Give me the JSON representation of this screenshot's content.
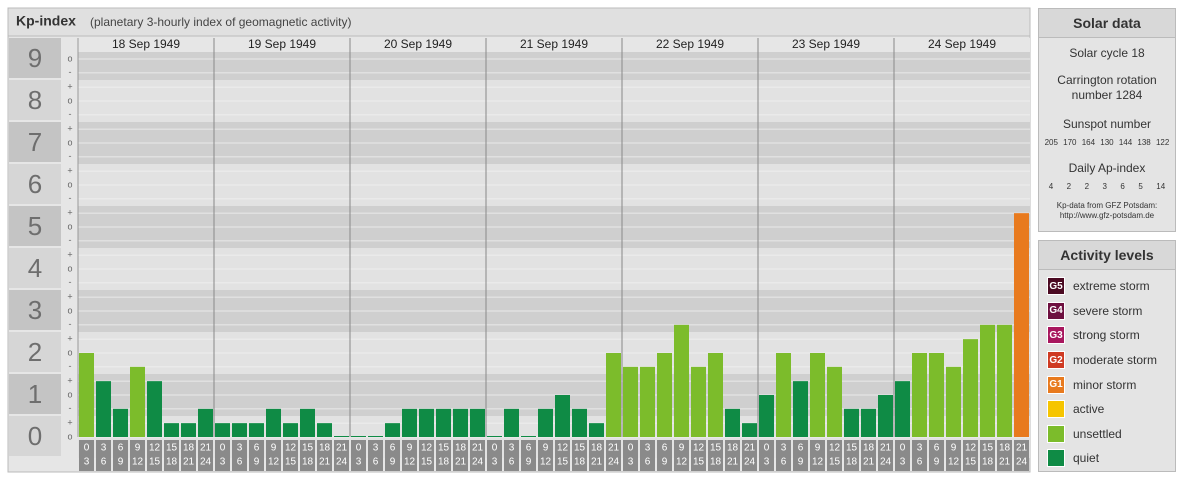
{
  "chart_data": {
    "type": "bar",
    "title": "Kp-index",
    "subtitle": "(planetary 3-hourly index of geomagnetic activity)",
    "ylim": [
      -0.5,
      9.5
    ],
    "yticks": [
      0,
      1,
      2,
      3,
      4,
      5,
      6,
      7,
      8,
      9
    ],
    "yminorticks": [
      {
        "value": 0,
        "label": "o"
      },
      {
        "value": 0.33,
        "label": "+"
      },
      {
        "value": 0.67,
        "label": "-"
      },
      {
        "value": 1,
        "label": "o"
      },
      {
        "value": 1.33,
        "label": "+"
      },
      {
        "value": 1.67,
        "label": "-"
      },
      {
        "value": 2,
        "label": "o"
      },
      {
        "value": 2.33,
        "label": "+"
      },
      {
        "value": 2.67,
        "label": "-"
      },
      {
        "value": 3,
        "label": "o"
      },
      {
        "value": 3.33,
        "label": "+"
      },
      {
        "value": 3.67,
        "label": "-"
      },
      {
        "value": 4,
        "label": "o"
      },
      {
        "value": 4.33,
        "label": "+"
      },
      {
        "value": 4.67,
        "label": "-"
      },
      {
        "value": 5,
        "label": "o"
      },
      {
        "value": 5.33,
        "label": "+"
      },
      {
        "value": 5.67,
        "label": "-"
      },
      {
        "value": 6,
        "label": "o"
      },
      {
        "value": 6.33,
        "label": "+"
      },
      {
        "value": 6.67,
        "label": "-"
      },
      {
        "value": 7,
        "label": "o"
      },
      {
        "value": 7.33,
        "label": "+"
      },
      {
        "value": 7.67,
        "label": "-"
      },
      {
        "value": 8,
        "label": "o"
      },
      {
        "value": 8.33,
        "label": "+"
      },
      {
        "value": 8.67,
        "label": "-"
      },
      {
        "value": 9,
        "label": "o"
      }
    ],
    "hours_from": [
      0,
      3,
      6,
      9,
      12,
      15,
      18,
      21
    ],
    "hours_to": [
      3,
      6,
      9,
      12,
      15,
      18,
      21,
      24
    ],
    "days": [
      {
        "date": "18 Sep 1949",
        "values": [
          2,
          1.33,
          0.67,
          1.67,
          1.33,
          0.33,
          0.33,
          0.67
        ],
        "colors": [
          "#7cbc2b",
          "#0f8b45",
          "#0f8b45",
          "#7cbc2b",
          "#0f8b45",
          "#0f8b45",
          "#0f8b45",
          "#0f8b45"
        ]
      },
      {
        "date": "19 Sep 1949",
        "values": [
          0.33,
          0.33,
          0.33,
          0.67,
          0.33,
          0.67,
          0.33,
          0
        ],
        "colors": [
          "#0f8b45",
          "#0f8b45",
          "#0f8b45",
          "#0f8b45",
          "#0f8b45",
          "#0f8b45",
          "#0f8b45",
          "#0f8b45"
        ]
      },
      {
        "date": "20 Sep 1949",
        "values": [
          0,
          0,
          0.33,
          0.67,
          0.67,
          0.67,
          0.67,
          0.67
        ],
        "colors": [
          "#0f8b45",
          "#0f8b45",
          "#0f8b45",
          "#0f8b45",
          "#0f8b45",
          "#0f8b45",
          "#0f8b45",
          "#0f8b45"
        ]
      },
      {
        "date": "21 Sep 1949",
        "values": [
          0,
          0.67,
          0,
          0.67,
          1,
          0.67,
          0.33,
          2
        ],
        "colors": [
          "#0f8b45",
          "#0f8b45",
          "#0f8b45",
          "#0f8b45",
          "#0f8b45",
          "#0f8b45",
          "#0f8b45",
          "#7cbc2b"
        ]
      },
      {
        "date": "22 Sep 1949",
        "values": [
          1.67,
          1.67,
          2,
          2.67,
          1.67,
          2,
          0.67,
          0.33
        ],
        "colors": [
          "#7cbc2b",
          "#7cbc2b",
          "#7cbc2b",
          "#7cbc2b",
          "#7cbc2b",
          "#7cbc2b",
          "#0f8b45",
          "#0f8b45"
        ]
      },
      {
        "date": "23 Sep 1949",
        "values": [
          1,
          2,
          1.33,
          2,
          1.67,
          0.67,
          0.67,
          1
        ],
        "colors": [
          "#0f8b45",
          "#7cbc2b",
          "#0f8b45",
          "#7cbc2b",
          "#7cbc2b",
          "#0f8b45",
          "#0f8b45",
          "#0f8b45"
        ]
      },
      {
        "date": "24 Sep 1949",
        "values": [
          1.33,
          2,
          2,
          1.67,
          2.33,
          2.67,
          2.67,
          5.33
        ],
        "colors": [
          "#0f8b45",
          "#7cbc2b",
          "#7cbc2b",
          "#7cbc2b",
          "#7cbc2b",
          "#7cbc2b",
          "#7cbc2b",
          "#e87a1e"
        ]
      }
    ]
  },
  "solar_data": {
    "title": "Solar data",
    "cycle": "Solar cycle 18",
    "carrington": "Carrington rotation number 1284",
    "sunspot_title": "Sunspot number",
    "sunspot_values": [
      205,
      170,
      164,
      130,
      144,
      138,
      122
    ],
    "ap_title": "Daily Ap-index",
    "ap_values": [
      4,
      2,
      2,
      3,
      6,
      5,
      14
    ],
    "source": "Kp-data from GFZ Potsdam:",
    "source_url": "http://www.gfz-potsdam.de"
  },
  "activity_levels": {
    "title": "Activity levels",
    "items": [
      {
        "badge": "G5",
        "label": "extreme storm",
        "color": "#4b0a22"
      },
      {
        "badge": "G4",
        "label": "severe storm",
        "color": "#6e1040"
      },
      {
        "badge": "G3",
        "label": "strong storm",
        "color": "#a8175e"
      },
      {
        "badge": "G2",
        "label": "moderate storm",
        "color": "#cf3a22"
      },
      {
        "badge": "G1",
        "label": "minor storm",
        "color": "#e87a1e"
      },
      {
        "label": "active",
        "color": "#f6c500"
      },
      {
        "label": "unsettled",
        "color": "#7cbc2b"
      },
      {
        "label": "quiet",
        "color": "#0f8b45"
      }
    ]
  }
}
